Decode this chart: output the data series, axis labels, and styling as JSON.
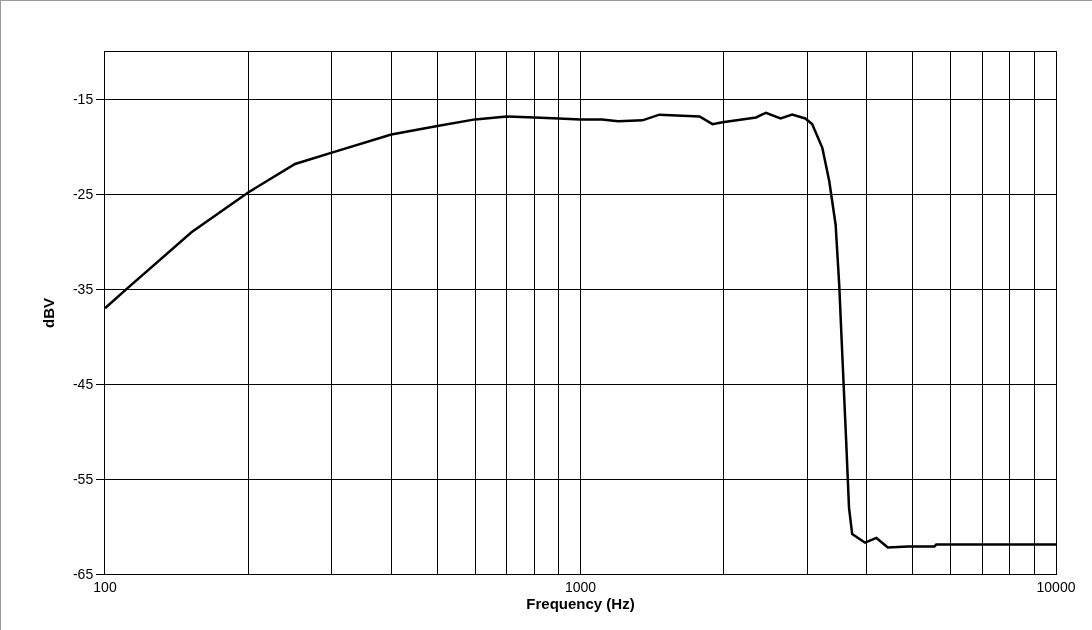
{
  "chart_data": {
    "type": "line",
    "xlabel": "Frequency (Hz)",
    "ylabel": "dBV",
    "log": "x",
    "grid": true,
    "legend": false,
    "marker": "none",
    "line_style": "solid",
    "xlim": [
      100,
      10000
    ],
    "ylim": [
      -65,
      -10
    ],
    "xticks": [
      100,
      {
        "value": 200,
        "label": null
      },
      {
        "value": 300,
        "label": null
      },
      {
        "value": 400,
        "label": null
      },
      {
        "value": 500,
        "label": null
      },
      {
        "value": 600,
        "label": null
      },
      {
        "value": 700,
        "label": null
      },
      {
        "value": 800,
        "label": null
      },
      {
        "value": 900,
        "label": null
      },
      1000,
      {
        "value": 2000,
        "label": null
      },
      {
        "value": 3000,
        "label": null
      },
      {
        "value": 4000,
        "label": null
      },
      {
        "value": 5000,
        "label": null
      },
      {
        "value": 6000,
        "label": null
      },
      {
        "value": 7000,
        "label": null
      },
      {
        "value": 8000,
        "label": null
      },
      {
        "value": 9000,
        "label": null
      },
      10000
    ],
    "yticks": [
      -15,
      -25,
      -35,
      -45,
      -55,
      -65
    ],
    "series": [
      {
        "color": "#000000",
        "x": [
          100,
          112,
          152,
          200,
          251,
          300,
          400,
          500,
          600,
          700,
          800,
          900,
          1000,
          1110,
          1200,
          1350,
          1465,
          1780,
          1895,
          1990,
          2340,
          2455,
          2635,
          2787,
          2970,
          3070,
          3225,
          3335,
          3440,
          3500,
          3555,
          3620,
          3670,
          3727,
          3967,
          4190,
          4430,
          4880,
          5550,
          5600,
          10000
        ],
        "values": [
          -37,
          -34.8,
          -29,
          -24.8,
          -21.8,
          -20.6,
          -18.7,
          -17.8,
          -17.1,
          -16.8,
          -16.9,
          -17,
          -17.1,
          -17.1,
          -17.3,
          -17.2,
          -16.6,
          -16.8,
          -17.6,
          -17.4,
          -16.9,
          -16.4,
          -17,
          -16.6,
          -17,
          -17.6,
          -20.1,
          -23.6,
          -28.2,
          -34.5,
          -42.2,
          -51,
          -58,
          -60.8,
          -61.7,
          -61.2,
          -62.2,
          -62.1,
          -62.1,
          -61.9,
          -61.9
        ]
      }
    ]
  }
}
